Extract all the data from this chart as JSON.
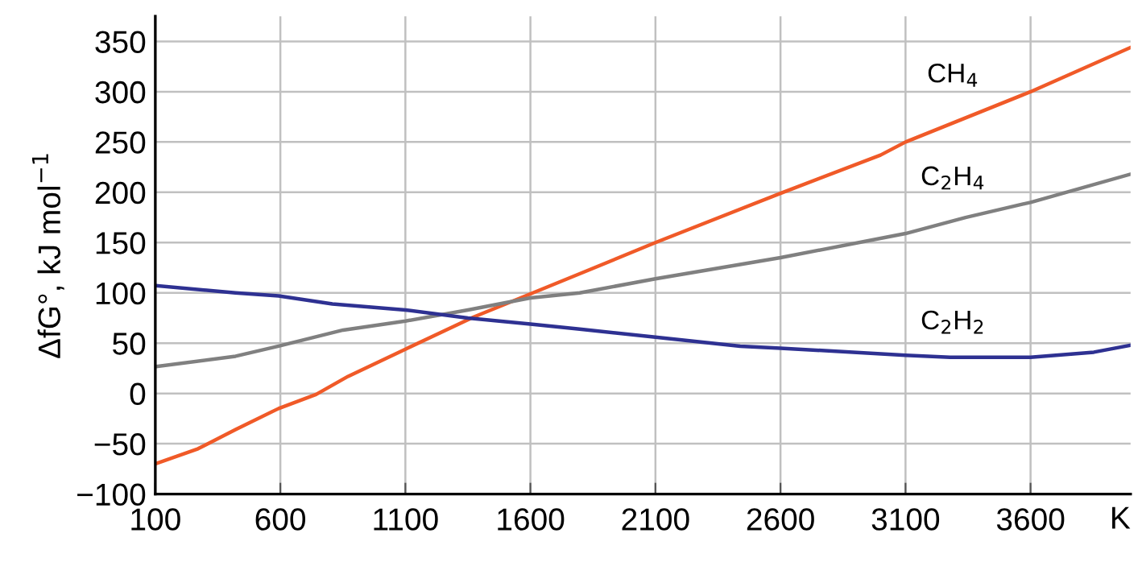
{
  "chart_data": {
    "type": "line",
    "ylabel": "ΔfG°, kJ mol$^{−1}$",
    "xlabel": "K",
    "xlim": [
      100,
      4000
    ],
    "xticks": [
      100,
      600,
      1100,
      1600,
      2100,
      2600,
      3100,
      3600
    ],
    "ylim": [
      -100,
      375
    ],
    "yticks": [
      -100,
      -50,
      0,
      50,
      100,
      150,
      200,
      250,
      300,
      350
    ],
    "grid": true,
    "marker": "none",
    "line_style": "solid",
    "series": [
      {
        "name": "CH$_{4}$",
        "color": "#f05a28",
        "x": [
          100,
          271,
          421,
          593,
          743,
          871,
          1100,
          1373,
          1600,
          1797,
          2100,
          2600,
          3000,
          3100,
          3600,
          4000
        ],
        "values": [
          -70,
          -55,
          -36,
          -15,
          -1,
          17,
          44,
          76,
          99,
          119,
          150,
          199,
          237,
          250,
          300,
          344
        ]
      },
      {
        "name": "C$_{2}$H$_{4}$",
        "color": "#808080",
        "x": [
          110,
          421,
          593,
          851,
          1100,
          1350,
          1600,
          1797,
          2100,
          2600,
          3100,
          3340,
          3600,
          4000
        ],
        "values": [
          27,
          37,
          47,
          63,
          72,
          83,
          95,
          100,
          114,
          135,
          159,
          175,
          190,
          218
        ]
      },
      {
        "name": "C$_{2}$H$_{2}$",
        "color": "#2e3192",
        "x": [
          110,
          421,
          593,
          808,
          1100,
          1350,
          1600,
          1797,
          2100,
          2439,
          2600,
          3100,
          3278,
          3600,
          3853,
          4000
        ],
        "values": [
          107,
          100,
          97,
          89,
          83,
          75,
          69,
          64,
          56,
          47,
          45,
          38,
          36,
          36,
          41,
          48
        ]
      }
    ]
  }
}
